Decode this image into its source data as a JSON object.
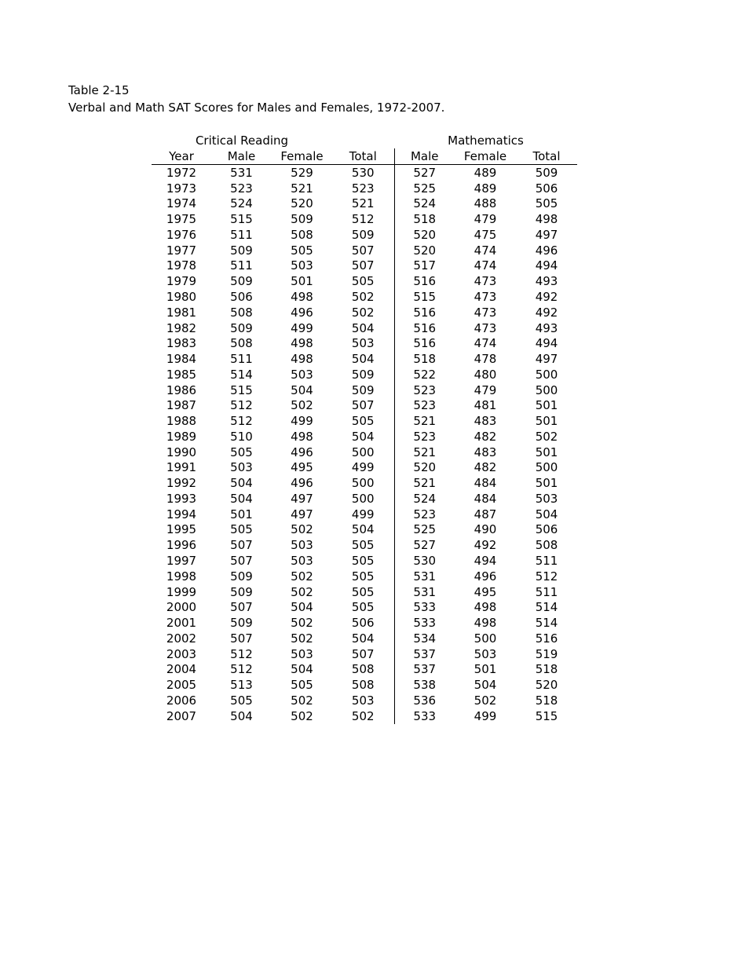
{
  "document": {
    "title": "Table 2-15",
    "subtitle": "Verbal and Math SAT Scores for Males and Females, 1972-2007."
  },
  "table": {
    "group_headers": [
      "Critical Reading",
      "Mathematics"
    ],
    "columns": [
      "Year",
      "Male",
      "Female",
      "Total",
      "Male",
      "Female",
      "Total"
    ],
    "rows": [
      [
        1972,
        531,
        529,
        530,
        527,
        489,
        509
      ],
      [
        1973,
        523,
        521,
        523,
        525,
        489,
        506
      ],
      [
        1974,
        524,
        520,
        521,
        524,
        488,
        505
      ],
      [
        1975,
        515,
        509,
        512,
        518,
        479,
        498
      ],
      [
        1976,
        511,
        508,
        509,
        520,
        475,
        497
      ],
      [
        1977,
        509,
        505,
        507,
        520,
        474,
        496
      ],
      [
        1978,
        511,
        503,
        507,
        517,
        474,
        494
      ],
      [
        1979,
        509,
        501,
        505,
        516,
        473,
        493
      ],
      [
        1980,
        506,
        498,
        502,
        515,
        473,
        492
      ],
      [
        1981,
        508,
        496,
        502,
        516,
        473,
        492
      ],
      [
        1982,
        509,
        499,
        504,
        516,
        473,
        493
      ],
      [
        1983,
        508,
        498,
        503,
        516,
        474,
        494
      ],
      [
        1984,
        511,
        498,
        504,
        518,
        478,
        497
      ],
      [
        1985,
        514,
        503,
        509,
        522,
        480,
        500
      ],
      [
        1986,
        515,
        504,
        509,
        523,
        479,
        500
      ],
      [
        1987,
        512,
        502,
        507,
        523,
        481,
        501
      ],
      [
        1988,
        512,
        499,
        505,
        521,
        483,
        501
      ],
      [
        1989,
        510,
        498,
        504,
        523,
        482,
        502
      ],
      [
        1990,
        505,
        496,
        500,
        521,
        483,
        501
      ],
      [
        1991,
        503,
        495,
        499,
        520,
        482,
        500
      ],
      [
        1992,
        504,
        496,
        500,
        521,
        484,
        501
      ],
      [
        1993,
        504,
        497,
        500,
        524,
        484,
        503
      ],
      [
        1994,
        501,
        497,
        499,
        523,
        487,
        504
      ],
      [
        1995,
        505,
        502,
        504,
        525,
        490,
        506
      ],
      [
        1996,
        507,
        503,
        505,
        527,
        492,
        508
      ],
      [
        1997,
        507,
        503,
        505,
        530,
        494,
        511
      ],
      [
        1998,
        509,
        502,
        505,
        531,
        496,
        512
      ],
      [
        1999,
        509,
        502,
        505,
        531,
        495,
        511
      ],
      [
        2000,
        507,
        504,
        505,
        533,
        498,
        514
      ],
      [
        2001,
        509,
        502,
        506,
        533,
        498,
        514
      ],
      [
        2002,
        507,
        502,
        504,
        534,
        500,
        516
      ],
      [
        2003,
        512,
        503,
        507,
        537,
        503,
        519
      ],
      [
        2004,
        512,
        504,
        508,
        537,
        501,
        518
      ],
      [
        2005,
        513,
        505,
        508,
        538,
        504,
        520
      ],
      [
        2006,
        505,
        502,
        503,
        536,
        502,
        518
      ],
      [
        2007,
        504,
        502,
        502,
        533,
        499,
        515
      ]
    ]
  }
}
